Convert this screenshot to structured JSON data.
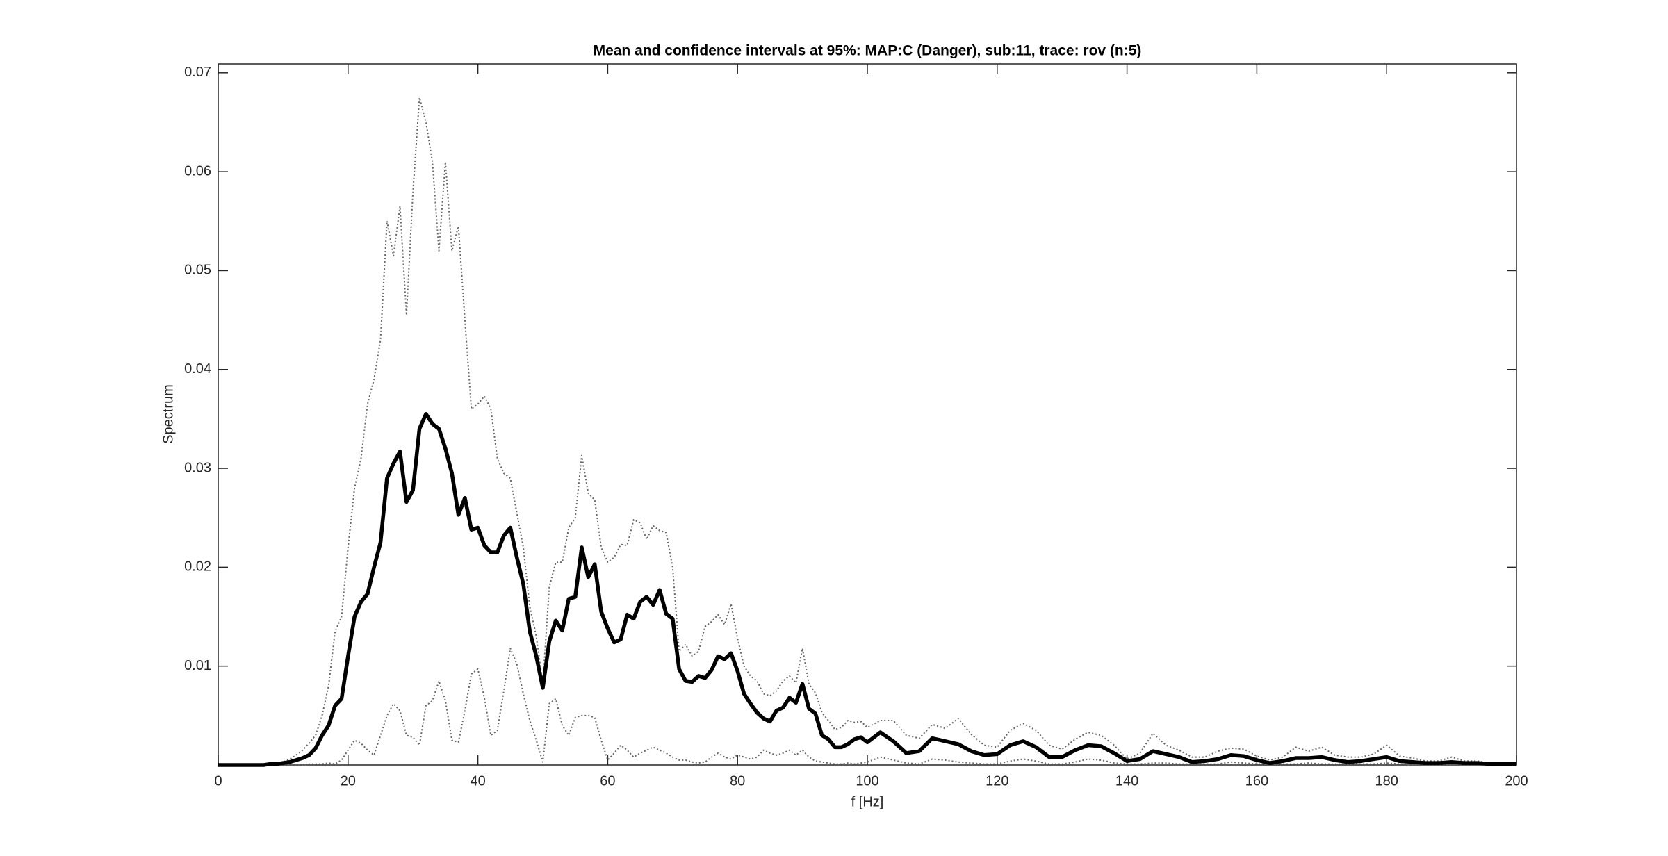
{
  "chart_data": {
    "type": "line",
    "title": "Mean and confidence intervals at 95%: MAP:C (Danger), sub:11, trace: rov (n:5)",
    "xlabel": "f [Hz]",
    "ylabel": "Spectrum",
    "xlim": [
      0,
      200
    ],
    "xticks": [
      0,
      20,
      40,
      60,
      80,
      100,
      120,
      140,
      160,
      180,
      200
    ],
    "ylim": [
      0,
      0.0709
    ],
    "yticks": [
      0.01,
      0.02,
      0.03,
      0.04,
      0.05,
      0.06,
      0.07
    ],
    "grid": false,
    "x": [
      0,
      1,
      2,
      3,
      4,
      5,
      6,
      7,
      8,
      9,
      10,
      11,
      12,
      13,
      14,
      15,
      16,
      17,
      18,
      19,
      20,
      21,
      22,
      23,
      24,
      25,
      26,
      27,
      28,
      29,
      30,
      31,
      32,
      33,
      34,
      35,
      36,
      37,
      38,
      39,
      40,
      41,
      42,
      43,
      44,
      45,
      46,
      47,
      48,
      49,
      50,
      51,
      52,
      53,
      54,
      55,
      56,
      57,
      58,
      59,
      60,
      61,
      62,
      63,
      64,
      65,
      66,
      67,
      68,
      69,
      70,
      71,
      72,
      73,
      74,
      75,
      76,
      77,
      78,
      79,
      80,
      81,
      82,
      83,
      84,
      85,
      86,
      87,
      88,
      89,
      90,
      91,
      92,
      93,
      94,
      95,
      96,
      97,
      98,
      99,
      100,
      102,
      104,
      106,
      108,
      110,
      112,
      114,
      116,
      118,
      120,
      122,
      124,
      126,
      128,
      130,
      132,
      134,
      136,
      138,
      140,
      142,
      144,
      146,
      148,
      150,
      152,
      154,
      156,
      158,
      160,
      162,
      164,
      166,
      168,
      170,
      172,
      174,
      176,
      178,
      180,
      182,
      184,
      186,
      188,
      190,
      192,
      194,
      196,
      198,
      200
    ],
    "series": [
      {
        "color": "#666666",
        "linestyle": "dotted",
        "values": [
          0,
          0,
          0,
          0,
          0,
          0,
          0,
          0.0001,
          0.0001,
          0.0002,
          0.0003,
          0.0006,
          0.001,
          0.0015,
          0.0022,
          0.003,
          0.005,
          0.008,
          0.0135,
          0.015,
          0.022,
          0.028,
          0.031,
          0.0365,
          0.039,
          0.043,
          0.055,
          0.0515,
          0.0565,
          0.0455,
          0.058,
          0.0675,
          0.065,
          0.061,
          0.052,
          0.061,
          0.052,
          0.0545,
          0.045,
          0.036,
          0.0365,
          0.0373,
          0.036,
          0.031,
          0.0295,
          0.029,
          0.0255,
          0.022,
          0.016,
          0.013,
          0.0082,
          0.018,
          0.0205,
          0.0205,
          0.024,
          0.025,
          0.0313,
          0.0275,
          0.0268,
          0.022,
          0.0205,
          0.021,
          0.0223,
          0.0222,
          0.0248,
          0.0245,
          0.0228,
          0.0242,
          0.0237,
          0.0235,
          0.02,
          0.0115,
          0.0122,
          0.011,
          0.0115,
          0.014,
          0.0145,
          0.0152,
          0.0142,
          0.0163,
          0.0128,
          0.01,
          0.009,
          0.0085,
          0.0072,
          0.007,
          0.0075,
          0.0085,
          0.009,
          0.0083,
          0.0118,
          0.0082,
          0.0073,
          0.0053,
          0.0045,
          0.0036,
          0.0038,
          0.0045,
          0.0043,
          0.0044,
          0.0038,
          0.0045,
          0.0045,
          0.003,
          0.0027,
          0.0041,
          0.0037,
          0.0047,
          0.0031,
          0.002,
          0.0018,
          0.0035,
          0.0042,
          0.0035,
          0.002,
          0.0016,
          0.0026,
          0.0033,
          0.003,
          0.002,
          0.0006,
          0.0012,
          0.0032,
          0.002,
          0.0015,
          0.0008,
          0.0008,
          0.0014,
          0.0017,
          0.0016,
          0.0009,
          0.0005,
          0.0008,
          0.0018,
          0.0014,
          0.0018,
          0.001,
          0.0008,
          0.0008,
          0.0011,
          0.002,
          0.0009,
          0.0007,
          0.0004,
          0.0004,
          0.0008,
          0.0004,
          0.0004,
          0.0002,
          0.0002,
          0.0002
        ]
      },
      {
        "color": "#666666",
        "linestyle": "dotted",
        "values": [
          0,
          0,
          0,
          0,
          0,
          0,
          0,
          0,
          0,
          0,
          0,
          0,
          0,
          0,
          0.0001,
          0.0001,
          0.0001,
          0.0002,
          0.0001,
          0.0005,
          0.0015,
          0.0025,
          0.0022,
          0.0015,
          0.001,
          0.003,
          0.005,
          0.0062,
          0.0055,
          0.003,
          0.0028,
          0.002,
          0.006,
          0.0065,
          0.0085,
          0.0065,
          0.0025,
          0.0023,
          0.0055,
          0.0092,
          0.0097,
          0.0068,
          0.003,
          0.0035,
          0.0075,
          0.0118,
          0.0102,
          0.0072,
          0.0045,
          0.0025,
          0.0003,
          0.0062,
          0.0067,
          0.004,
          0.003,
          0.0048,
          0.005,
          0.005,
          0.0048,
          0.0025,
          0.0005,
          0.0012,
          0.002,
          0.0015,
          0.0008,
          0.0012,
          0.0015,
          0.0018,
          0.0015,
          0.0012,
          0.0008,
          0.0005,
          0.0005,
          0.0003,
          0.0002,
          0.0003,
          0.0008,
          0.0012,
          0.0008,
          0.0006,
          0.001,
          0.0008,
          0.0006,
          0.0008,
          0.0015,
          0.0012,
          0.001,
          0.0012,
          0.0015,
          0.001,
          0.0015,
          0.0008,
          0.0004,
          0.0003,
          0.0002,
          0.0001,
          0.0001,
          0.0002,
          0.0001,
          0.0002,
          0.0003,
          0.0008,
          0.0005,
          0.0002,
          0.0001,
          0.0006,
          0.0005,
          0.0003,
          0.0002,
          0.0001,
          0.0001,
          0.0004,
          0.0006,
          0.0004,
          0.0001,
          0.0001,
          0.0003,
          0.0006,
          0.0005,
          0.0002,
          0.0001,
          0.0001,
          0.0002,
          0.0002,
          0.0001,
          0.0001,
          0.0001,
          0.0001,
          0.0003,
          0.0002,
          0.0001,
          0.0001,
          0.0001,
          0.0001,
          0.0002,
          0.0001,
          0.0001,
          0.0001,
          0.0001,
          0.0001,
          0.0002,
          0.0001,
          0,
          0,
          0,
          0,
          0,
          0,
          0,
          0,
          0
        ]
      },
      {
        "color": "#000000",
        "linestyle": "solid",
        "values": [
          0,
          0,
          0,
          0,
          0,
          0,
          0,
          0,
          0.0001,
          0.0001,
          0.0002,
          0.0003,
          0.0005,
          0.0007,
          0.001,
          0.0017,
          0.003,
          0.004,
          0.006,
          0.0067,
          0.011,
          0.015,
          0.0165,
          0.0173,
          0.02,
          0.0225,
          0.029,
          0.0305,
          0.0317,
          0.0266,
          0.0278,
          0.034,
          0.0355,
          0.0345,
          0.034,
          0.032,
          0.0295,
          0.0253,
          0.027,
          0.0238,
          0.024,
          0.0222,
          0.0215,
          0.0215,
          0.0232,
          0.024,
          0.021,
          0.0183,
          0.0135,
          0.011,
          0.0078,
          0.0125,
          0.0146,
          0.0136,
          0.0168,
          0.017,
          0.022,
          0.019,
          0.0203,
          0.0155,
          0.0138,
          0.0124,
          0.0127,
          0.0152,
          0.0148,
          0.0165,
          0.017,
          0.0162,
          0.0177,
          0.0153,
          0.0148,
          0.0097,
          0.0085,
          0.0084,
          0.009,
          0.0088,
          0.0096,
          0.011,
          0.0107,
          0.0113,
          0.0095,
          0.0072,
          0.0062,
          0.0053,
          0.0047,
          0.0044,
          0.0055,
          0.0058,
          0.0068,
          0.0063,
          0.0082,
          0.0057,
          0.0052,
          0.003,
          0.0026,
          0.0018,
          0.0018,
          0.0021,
          0.0026,
          0.0028,
          0.0023,
          0.0033,
          0.0024,
          0.0012,
          0.0014,
          0.0027,
          0.0024,
          0.0021,
          0.0014,
          0.001,
          0.0011,
          0.002,
          0.0024,
          0.0018,
          0.0008,
          0.0008,
          0.0015,
          0.002,
          0.0019,
          0.0012,
          0.0004,
          0.0006,
          0.0014,
          0.0011,
          0.0008,
          0.0003,
          0.0004,
          0.0006,
          0.001,
          0.0009,
          0.0005,
          0.0002,
          0.0004,
          0.0007,
          0.0007,
          0.0008,
          0.0005,
          0.0003,
          0.0004,
          0.0006,
          0.0008,
          0.0004,
          0.0003,
          0.0002,
          0.0002,
          0.0003,
          0.0002,
          0.0002,
          0.0001,
          0.0001,
          0.0001
        ]
      }
    ]
  }
}
